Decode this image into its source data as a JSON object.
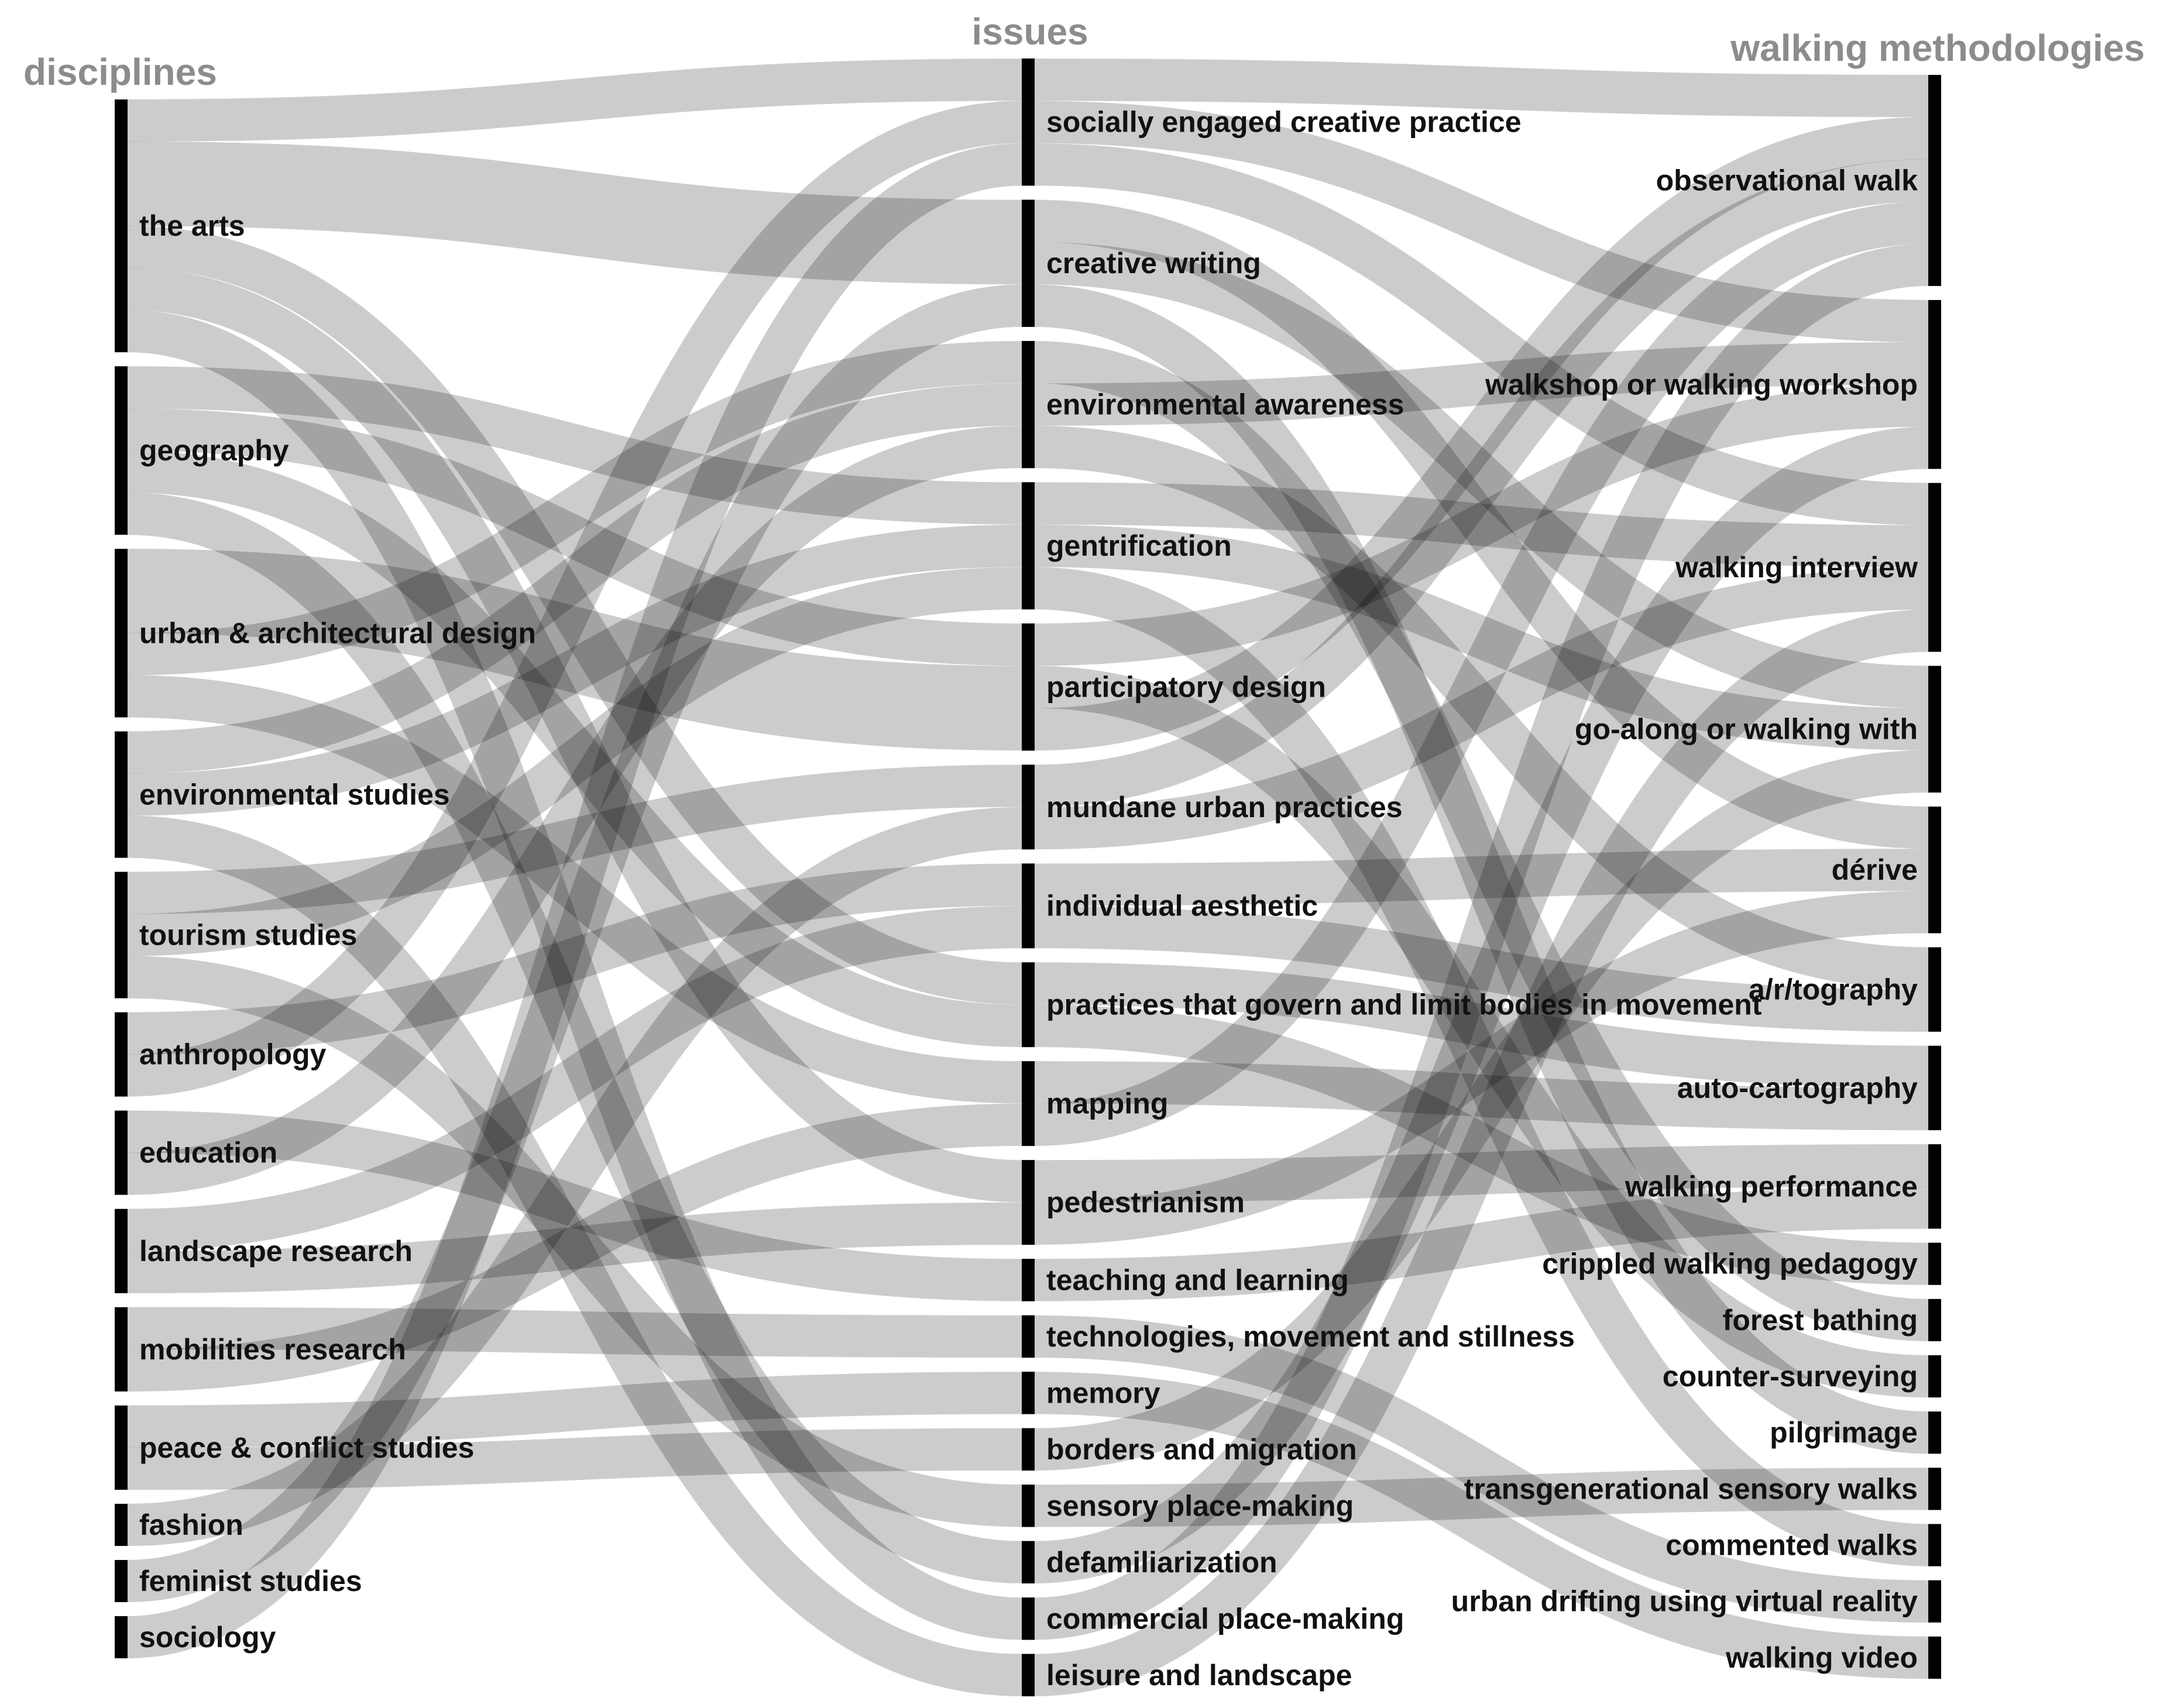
{
  "colors": {
    "bar": "#000000",
    "flow": "#000000",
    "title": "#8c8c8c",
    "label": "#111111"
  },
  "columns": {
    "left": {
      "title": "disciplines",
      "nodes": [
        {
          "id": "arts",
          "label": "the arts",
          "value": 9
        },
        {
          "id": "geo",
          "label": "geography",
          "value": 6
        },
        {
          "id": "urb",
          "label": "urban & architectural design",
          "value": 6
        },
        {
          "id": "env",
          "label": "environmental studies",
          "value": 4.5
        },
        {
          "id": "tour",
          "label": "tourism studies",
          "value": 4.5
        },
        {
          "id": "anth",
          "label": "anthropology",
          "value": 3
        },
        {
          "id": "edu",
          "label": "education",
          "value": 3
        },
        {
          "id": "land",
          "label": "landscape research",
          "value": 3
        },
        {
          "id": "mob",
          "label": "mobilities research",
          "value": 3
        },
        {
          "id": "peace",
          "label": "peace & conflict studies",
          "value": 3
        },
        {
          "id": "fash",
          "label": "fashion",
          "value": 1.5
        },
        {
          "id": "fem",
          "label": "feminist studies",
          "value": 1.5
        },
        {
          "id": "soc",
          "label": "sociology",
          "value": 1.5
        }
      ]
    },
    "middle": {
      "title": "issues",
      "nodes": [
        {
          "id": "sec",
          "label": "socially engaged creative practice",
          "value": 4.5
        },
        {
          "id": "cw",
          "label": "creative writing",
          "value": 4.5
        },
        {
          "id": "ea",
          "label": "environmental awareness",
          "value": 4.5
        },
        {
          "id": "gent",
          "label": "gentrification",
          "value": 4.5
        },
        {
          "id": "pd",
          "label": "participatory design",
          "value": 4.5
        },
        {
          "id": "mup",
          "label": "mundane urban practices",
          "value": 3
        },
        {
          "id": "ia",
          "label": "individual aesthetic",
          "value": 3
        },
        {
          "id": "pgl",
          "label": "practices that govern and limit bodies in movement",
          "value": 3
        },
        {
          "id": "map",
          "label": "mapping",
          "value": 3
        },
        {
          "id": "ped",
          "label": "pedestrianism",
          "value": 3
        },
        {
          "id": "tl",
          "label": "teaching and learning",
          "value": 1.5
        },
        {
          "id": "tms",
          "label": "technologies, movement and stillness",
          "value": 1.5
        },
        {
          "id": "mem",
          "label": "memory",
          "value": 1.5
        },
        {
          "id": "bm",
          "label": "borders and migration",
          "value": 1.5
        },
        {
          "id": "spm",
          "label": "sensory place-making",
          "value": 1.5
        },
        {
          "id": "def",
          "label": "defamiliarization",
          "value": 1.5
        },
        {
          "id": "cpm",
          "label": "commercial place-making",
          "value": 1.5
        },
        {
          "id": "ll",
          "label": "leisure and landscape",
          "value": 1.5
        }
      ]
    },
    "right": {
      "title": "walking methodologies",
      "nodes": [
        {
          "id": "obs",
          "label": "observational walk",
          "value": 7.5
        },
        {
          "id": "wks",
          "label": "walkshop or walking workshop",
          "value": 6
        },
        {
          "id": "wi",
          "label": "walking interview",
          "value": 6
        },
        {
          "id": "ga",
          "label": "go-along or walking with",
          "value": 4.5
        },
        {
          "id": "der",
          "label": "dérive",
          "value": 4.5
        },
        {
          "id": "art",
          "label": "a/r/tography",
          "value": 3
        },
        {
          "id": "ac",
          "label": "auto-cartography",
          "value": 3
        },
        {
          "id": "wp",
          "label": "walking performance",
          "value": 3
        },
        {
          "id": "cwp",
          "label": "crippled walking pedagogy",
          "value": 1.5
        },
        {
          "id": "fb",
          "label": "forest bathing",
          "value": 1.5
        },
        {
          "id": "cs",
          "label": "counter-surveying",
          "value": 1.5
        },
        {
          "id": "pil",
          "label": "pilgrimage",
          "value": 1.5
        },
        {
          "id": "tsw",
          "label": "transgenerational sensory walks",
          "value": 1.5
        },
        {
          "id": "cmw",
          "label": "commented walks",
          "value": 1.5
        },
        {
          "id": "udvr",
          "label": "urban drifting using virtual reality",
          "value": 1.5
        },
        {
          "id": "wv",
          "label": "walking video",
          "value": 1.5
        }
      ]
    }
  },
  "links_left": [
    {
      "source": "arts",
      "target": "sec",
      "value": 1.5
    },
    {
      "source": "arts",
      "target": "cw",
      "value": 3
    },
    {
      "source": "arts",
      "target": "pgl",
      "value": 1.5
    },
    {
      "source": "arts",
      "target": "ped",
      "value": 1.5
    },
    {
      "source": "arts",
      "target": "cpm",
      "value": 1.5
    },
    {
      "source": "geo",
      "target": "gent",
      "value": 1.5
    },
    {
      "source": "geo",
      "target": "pd",
      "value": 1.5
    },
    {
      "source": "geo",
      "target": "pgl",
      "value": 1.5
    },
    {
      "source": "geo",
      "target": "defx",
      "value": 0
    },
    {
      "source": "geo",
      "target": "def",
      "value": 1.5
    },
    {
      "source": "urb",
      "target": "pd",
      "value": 3
    },
    {
      "source": "urb",
      "target": "ea",
      "value": 1.5
    },
    {
      "source": "urb",
      "target": "map",
      "value": 1.5
    },
    {
      "source": "env",
      "target": "ea",
      "value": 1.5
    },
    {
      "source": "env",
      "target": "gent",
      "value": 1.5
    },
    {
      "source": "env",
      "target": "ll",
      "value": 1.5
    },
    {
      "source": "tour",
      "target": "mup",
      "value": 1.5
    },
    {
      "source": "tour",
      "target": "gent",
      "value": 1.5
    },
    {
      "source": "tour",
      "target": "spm",
      "value": 1.5
    },
    {
      "source": "anth",
      "target": "ia",
      "value": 1.5
    },
    {
      "source": "anth",
      "target": "sec",
      "value": 1.5
    },
    {
      "source": "edu",
      "target": "tl",
      "value": 1.5
    },
    {
      "source": "edu",
      "target": "ea",
      "value": 1.5
    },
    {
      "source": "land",
      "target": "ia",
      "value": 1.5
    },
    {
      "source": "land",
      "target": "ped",
      "value": 1.5
    },
    {
      "source": "mob",
      "target": "tms",
      "value": 1.5
    },
    {
      "source": "mob",
      "target": "map",
      "value": 1.5
    },
    {
      "source": "peace",
      "target": "mem",
      "value": 1.5
    },
    {
      "source": "peace",
      "target": "bm",
      "value": 1.5
    },
    {
      "source": "fash",
      "target": "mup",
      "value": 1.5
    },
    {
      "source": "fem",
      "target": "cw",
      "value": 1.5
    },
    {
      "source": "soc",
      "target": "sec",
      "value": 1.5
    }
  ],
  "links_right": [
    {
      "source": "sec",
      "target": "obs",
      "value": 1.5
    },
    {
      "source": "sec",
      "target": "wks",
      "value": 1.5
    },
    {
      "source": "sec",
      "target": "wi",
      "value": 1.5
    },
    {
      "source": "cw",
      "target": "der",
      "value": 1.5
    },
    {
      "source": "cw",
      "target": "ga",
      "value": 1.5
    },
    {
      "source": "cw",
      "target": "pil",
      "value": 1.5
    },
    {
      "source": "ea",
      "target": "fb",
      "value": 1.5
    },
    {
      "source": "ea",
      "target": "wks",
      "value": 1.5
    },
    {
      "source": "ea",
      "target": "art",
      "value": 1.5
    },
    {
      "source": "gent",
      "target": "wi",
      "value": 1.5
    },
    {
      "source": "gent",
      "target": "ga",
      "value": 1.5
    },
    {
      "source": "gent",
      "target": "cmw",
      "value": 1.5
    },
    {
      "source": "pd",
      "target": "wks",
      "value": 1.5
    },
    {
      "source": "pd",
      "target": "cs",
      "value": 1.5
    },
    {
      "source": "pd",
      "target": "obs",
      "value": 1.5
    },
    {
      "source": "mup",
      "target": "obs",
      "value": 1.5
    },
    {
      "source": "mup",
      "target": "wi",
      "value": 1.5
    },
    {
      "source": "ia",
      "target": "der",
      "value": 1.5
    },
    {
      "source": "ia",
      "target": "art",
      "value": 1.5
    },
    {
      "source": "pgl",
      "target": "ac",
      "value": 1.5
    },
    {
      "source": "pgl",
      "target": "cwp",
      "value": 1.5
    },
    {
      "source": "map",
      "target": "ac",
      "value": 1.5
    },
    {
      "source": "map",
      "target": "obs",
      "value": 1.5
    },
    {
      "source": "ped",
      "target": "wp",
      "value": 1.5
    },
    {
      "source": "ped",
      "target": "der",
      "value": 1.5
    },
    {
      "source": "tl",
      "target": "wp",
      "value": 1.5
    },
    {
      "source": "tms",
      "target": "udvr",
      "value": 1.5
    },
    {
      "source": "mem",
      "target": "wv",
      "value": 1.5
    },
    {
      "source": "bm",
      "target": "ga",
      "value": 1.5
    },
    {
      "source": "spm",
      "target": "tsw",
      "value": 1.5
    },
    {
      "source": "def",
      "target": "wks",
      "value": 1.5
    },
    {
      "source": "cpm",
      "target": "obs",
      "value": 1.5
    },
    {
      "source": "ll",
      "target": "wi",
      "value": 1.5
    }
  ]
}
